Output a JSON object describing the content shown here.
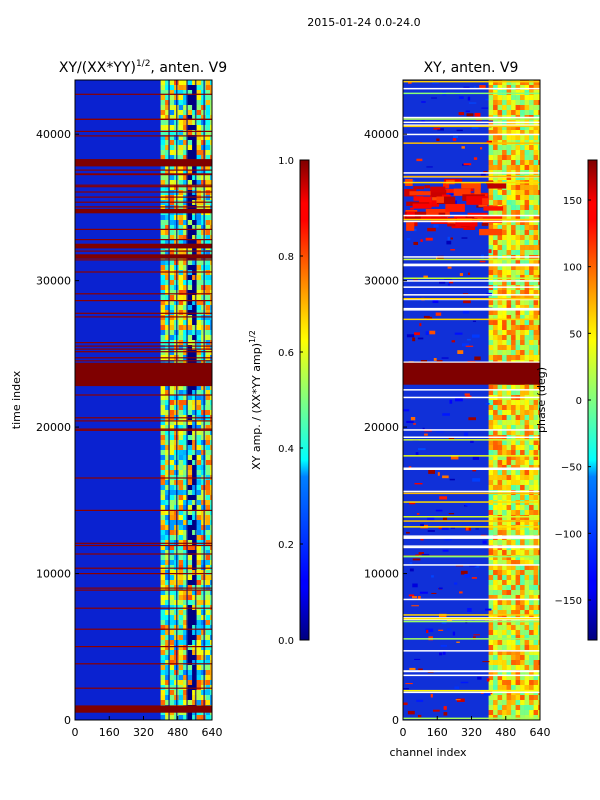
{
  "figure": {
    "suptitle": "2015-01-24 0.0-24.0"
  },
  "chart_data": [
    {
      "type": "heatmap",
      "title_main": "XY/(XX*YY)",
      "title_sup": "1/2",
      "title_rest": ", anten. V9",
      "xlabel": "",
      "ylabel": "time index",
      "xlim": [
        0,
        640
      ],
      "ylim": [
        0,
        43700
      ],
      "x_ticks": [
        0,
        160,
        320,
        480,
        640
      ],
      "x_tick_labels": [
        "0",
        "160",
        "320",
        "480",
        "640"
      ],
      "y_ticks": [
        0,
        10000,
        20000,
        30000,
        40000
      ],
      "y_tick_labels": [
        "0",
        "10000",
        "20000",
        "30000",
        "40000"
      ],
      "colorbar": {
        "label_main": "XY amp. / (XX*YY amp)",
        "label_sup": "1/2",
        "range": [
          0.0,
          1.0
        ],
        "ticks": [
          0.0,
          0.2,
          0.4,
          0.6,
          0.8,
          1.0
        ],
        "tick_labels": [
          "0.0",
          "0.2",
          "0.4",
          "0.6",
          "0.8",
          "1.0"
        ]
      },
      "saturated_time_bands": [
        [
          500,
          1000
        ],
        [
          22800,
          24400
        ],
        [
          37800,
          38300
        ],
        [
          34600,
          34900
        ],
        [
          32200,
          32500
        ],
        [
          31500,
          31800
        ]
      ],
      "bright_channel_range": [
        400,
        640
      ]
    },
    {
      "type": "heatmap",
      "title_main": "XY, anten. V9",
      "xlabel": "channel index",
      "ylabel": "",
      "xlim": [
        0,
        640
      ],
      "ylim": [
        0,
        43700
      ],
      "x_ticks": [
        0,
        160,
        320,
        480,
        640
      ],
      "x_tick_labels": [
        "0",
        "160",
        "320",
        "480",
        "640"
      ],
      "y_ticks": [
        0,
        10000,
        20000,
        30000,
        40000
      ],
      "y_tick_labels": [
        "0",
        "10000",
        "20000",
        "30000",
        "40000"
      ],
      "colorbar": {
        "label_main": "phase (deg)",
        "range": [
          -180,
          180
        ],
        "ticks": [
          -150,
          -100,
          -50,
          0,
          50,
          100,
          150
        ],
        "tick_labels": [
          "−150",
          "−100",
          "−50",
          "0",
          "50",
          "100",
          "150"
        ]
      },
      "saturated_time_bands": [
        [
          22900,
          24400
        ]
      ],
      "bright_channel_range": [
        400,
        640
      ]
    }
  ]
}
